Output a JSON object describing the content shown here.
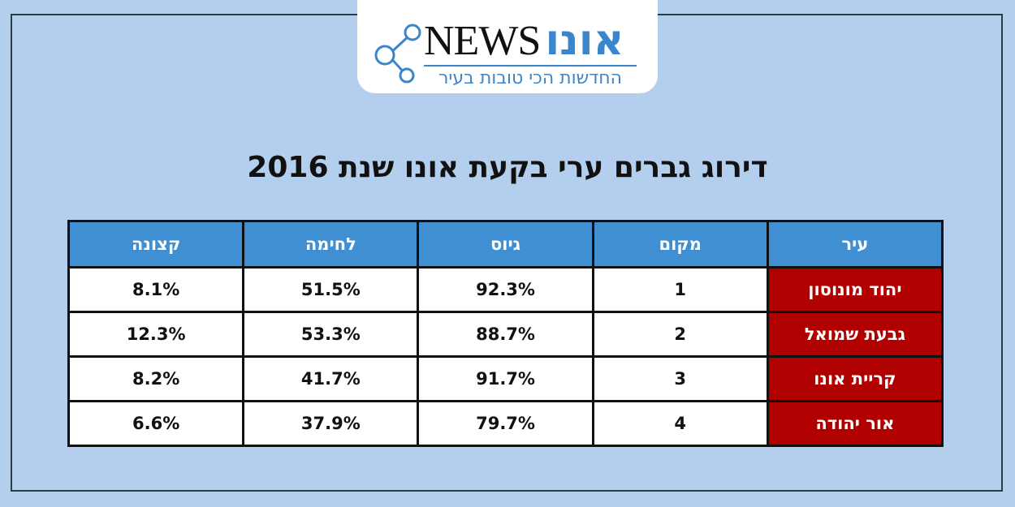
{
  "logo": {
    "brand_latin": "NEWS",
    "brand_hebrew": "אונו",
    "tagline": "החדשות הכי טובות בעיר"
  },
  "title": "דירוג גברים ערי בקעת אונו שנת 2016",
  "table": {
    "header": [
      "עיר",
      "מקום",
      "גיוס",
      "לחימה",
      "קצונה"
    ],
    "rows": [
      [
        "יהוד מונוסון",
        "1",
        "92.3%",
        "51.5%",
        "8.1%"
      ],
      [
        "גבעת שמואל",
        "2",
        "88.7%",
        "53.3%",
        "12.3%"
      ],
      [
        "קריית אונו",
        "3",
        "91.7%",
        "41.7%",
        "8.2%"
      ],
      [
        "אור יהודה",
        "4",
        "79.7%",
        "37.9%",
        "6.6%"
      ]
    ]
  }
}
